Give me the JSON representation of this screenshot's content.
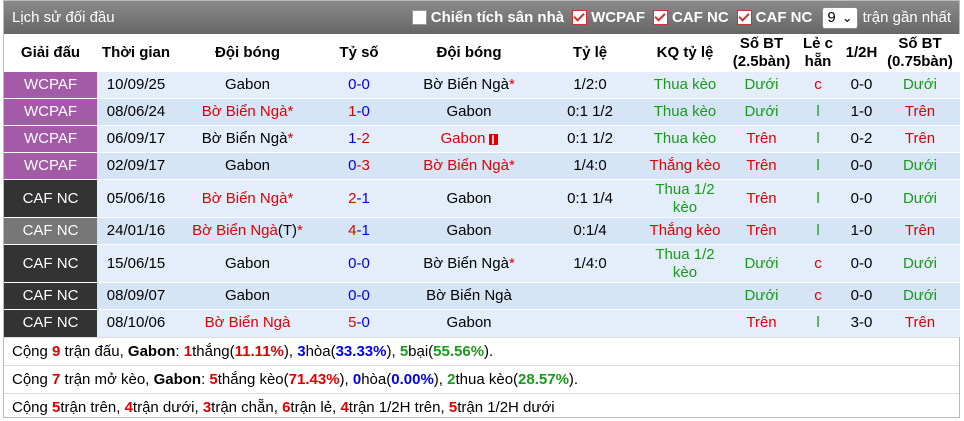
{
  "header": {
    "title": "Lịch sử đối đầu",
    "filters": [
      "Chiến tích sân nhà",
      "WCPAF",
      "CAF NC",
      "CAF NC"
    ],
    "count": "9",
    "count_label": "trận gần nhất"
  },
  "table": {
    "columns": [
      "Giải đấu",
      "Thời gian",
      "Đội bóng",
      "Tỷ số",
      "Đội bóng",
      "Tỷ lệ",
      "KQ tỷ lệ",
      "Số BT (2.5bàn)",
      "Lẻ c hẵn",
      "1/2H",
      "Số BT (0.75bàn)"
    ],
    "rows": [
      {
        "league": "WCPAF",
        "league_color": "#a35ba8",
        "date": "10/09/25",
        "home": {
          "name": "Gabon",
          "color": "#000"
        },
        "score": {
          "home": 0,
          "away": 0,
          "home_color": "#0000ee",
          "away_color": "#0000ee"
        },
        "away": {
          "name": "Bờ Biển Ngà",
          "color": "#000",
          "mark": "*"
        },
        "odds": "1/2:0",
        "result": {
          "text": "Thua kèo",
          "color": "#1a9a1a"
        },
        "ou": {
          "text": "Dưới",
          "color": "#1a9a1a"
        },
        "oe": {
          "text": "c",
          "color": "#e00000"
        },
        "half": "0-0",
        "ou_half": {
          "text": "Dưới",
          "color": "#1a9a1a"
        }
      },
      {
        "league": "WCPAF",
        "league_color": "#a35ba8",
        "date": "08/06/24",
        "home": {
          "name": "Bờ Biển Ngà",
          "color": "#e00000",
          "mark": "*"
        },
        "score": {
          "home": 1,
          "away": 0,
          "home_color": "#e00000",
          "away_color": "#0000ee"
        },
        "away": {
          "name": "Gabon",
          "color": "#000"
        },
        "odds": "0:1 1/2",
        "result": {
          "text": "Thua kèo",
          "color": "#1a9a1a"
        },
        "ou": {
          "text": "Dưới",
          "color": "#1a9a1a"
        },
        "oe": {
          "text": "l",
          "color": "#1a9a1a"
        },
        "half": "1-0",
        "ou_half": {
          "text": "Trên",
          "color": "#e00000"
        }
      },
      {
        "league": "WCPAF",
        "league_color": "#a35ba8",
        "date": "06/09/17",
        "home": {
          "name": "Bờ Biển Ngà",
          "color": "#000",
          "mark": "*"
        },
        "score": {
          "home": 1,
          "away": 2,
          "home_color": "#0000ee",
          "away_color": "#e00000"
        },
        "away": {
          "name": "Gabon",
          "color": "#e00000",
          "red_card": true
        },
        "odds": "0:1 1/2",
        "result": {
          "text": "Thua kèo",
          "color": "#1a9a1a"
        },
        "ou": {
          "text": "Trên",
          "color": "#e00000"
        },
        "oe": {
          "text": "l",
          "color": "#1a9a1a"
        },
        "half": "0-2",
        "ou_half": {
          "text": "Trên",
          "color": "#e00000"
        }
      },
      {
        "league": "WCPAF",
        "league_color": "#a35ba8",
        "date": "02/09/17",
        "home": {
          "name": "Gabon",
          "color": "#000"
        },
        "score": {
          "home": 0,
          "away": 3,
          "home_color": "#0000ee",
          "away_color": "#e00000"
        },
        "away": {
          "name": "Bờ Biển Ngà",
          "color": "#e00000",
          "mark": "*"
        },
        "odds": "1/4:0",
        "result": {
          "text": "Thắng kèo",
          "color": "#e00000"
        },
        "ou": {
          "text": "Trên",
          "color": "#e00000"
        },
        "oe": {
          "text": "l",
          "color": "#1a9a1a"
        },
        "half": "0-0",
        "ou_half": {
          "text": "Dưới",
          "color": "#1a9a1a"
        }
      },
      {
        "league": "CAF NC",
        "league_color": "#333333",
        "date": "05/06/16",
        "home": {
          "name": "Bờ Biển Ngà",
          "color": "#e00000",
          "mark": "*"
        },
        "score": {
          "home": 2,
          "away": 1,
          "home_color": "#e00000",
          "away_color": "#0000ee"
        },
        "away": {
          "name": "Gabon",
          "color": "#000"
        },
        "odds": "0:1 1/4",
        "result": {
          "text": "Thua 1/2 kèo",
          "color": "#1a9a1a"
        },
        "ou": {
          "text": "Trên",
          "color": "#e00000"
        },
        "oe": {
          "text": "l",
          "color": "#1a9a1a"
        },
        "half": "0-0",
        "ou_half": {
          "text": "Dưới",
          "color": "#1a9a1a"
        }
      },
      {
        "league": "CAF NC",
        "league_color": "#777777",
        "date": "24/01/16",
        "home": {
          "name": "Bờ Biển Ngà",
          "color": "#e00000",
          "suffix": "(T)",
          "mark": "*"
        },
        "score": {
          "home": 4,
          "away": 1,
          "home_color": "#e00000",
          "away_color": "#0000ee"
        },
        "away": {
          "name": "Gabon",
          "color": "#000"
        },
        "odds": "0:1/4",
        "result": {
          "text": "Thắng kèo",
          "color": "#e00000"
        },
        "ou": {
          "text": "Trên",
          "color": "#e00000"
        },
        "oe": {
          "text": "l",
          "color": "#1a9a1a"
        },
        "half": "1-0",
        "ou_half": {
          "text": "Trên",
          "color": "#e00000"
        }
      },
      {
        "league": "CAF NC",
        "league_color": "#333333",
        "date": "15/06/15",
        "home": {
          "name": "Gabon",
          "color": "#000"
        },
        "score": {
          "home": 0,
          "away": 0,
          "home_color": "#0000ee",
          "away_color": "#0000ee"
        },
        "away": {
          "name": "Bờ Biển Ngà",
          "color": "#000",
          "mark": "*"
        },
        "odds": "1/4:0",
        "result": {
          "text": "Thua 1/2 kèo",
          "color": "#1a9a1a"
        },
        "ou": {
          "text": "Dưới",
          "color": "#1a9a1a"
        },
        "oe": {
          "text": "c",
          "color": "#e00000"
        },
        "half": "0-0",
        "ou_half": {
          "text": "Dưới",
          "color": "#1a9a1a"
        }
      },
      {
        "league": "CAF NC",
        "league_color": "#333333",
        "date": "08/09/07",
        "home": {
          "name": "Gabon",
          "color": "#000"
        },
        "score": {
          "home": 0,
          "away": 0,
          "home_color": "#0000ee",
          "away_color": "#0000ee"
        },
        "away": {
          "name": "Bờ Biển Ngà",
          "color": "#000"
        },
        "odds": null,
        "result": null,
        "ou": {
          "text": "Dưới",
          "color": "#1a9a1a"
        },
        "oe": {
          "text": "c",
          "color": "#e00000"
        },
        "half": "0-0",
        "ou_half": {
          "text": "Dưới",
          "color": "#1a9a1a"
        }
      },
      {
        "league": "CAF NC",
        "league_color": "#333333",
        "date": "08/10/06",
        "home": {
          "name": "Bờ Biển Ngà",
          "color": "#e00000"
        },
        "score": {
          "home": 5,
          "away": 0,
          "home_color": "#e00000",
          "away_color": "#0000ee"
        },
        "away": {
          "name": "Gabon",
          "color": "#000"
        },
        "odds": null,
        "result": null,
        "ou": {
          "text": "Trên",
          "color": "#e00000"
        },
        "oe": {
          "text": "l",
          "color": "#1a9a1a"
        },
        "half": "3-0",
        "ou_half": {
          "text": "Trên",
          "color": "#e00000"
        }
      }
    ]
  },
  "summary": [
    [
      {
        "text": "Cộng "
      },
      {
        "text": "9",
        "color": "#e00000",
        "bold": true
      },
      {
        "text": " trận đấu, "
      },
      {
        "text": "Gabon",
        "bold": true
      },
      {
        "text": ": "
      },
      {
        "text": "1",
        "color": "#e00000",
        "bold": true
      },
      {
        "text": "thắng("
      },
      {
        "text": "11.11%",
        "color": "#e00000",
        "bold": true
      },
      {
        "text": "), "
      },
      {
        "text": "3",
        "color": "#0000ee",
        "bold": true
      },
      {
        "text": "hòa("
      },
      {
        "text": "33.33%",
        "color": "#0000ee",
        "bold": true
      },
      {
        "text": "), "
      },
      {
        "text": "5",
        "color": "#1a9a1a",
        "bold": true
      },
      {
        "text": "bại("
      },
      {
        "text": "55.56%",
        "color": "#1a9a1a",
        "bold": true
      },
      {
        "text": ")."
      }
    ],
    [
      {
        "text": "Cộng "
      },
      {
        "text": "7",
        "color": "#e00000",
        "bold": true
      },
      {
        "text": " trận mở kèo, "
      },
      {
        "text": "Gabon",
        "bold": true
      },
      {
        "text": ": "
      },
      {
        "text": "5",
        "color": "#e00000",
        "bold": true
      },
      {
        "text": "thắng kèo("
      },
      {
        "text": "71.43%",
        "color": "#e00000",
        "bold": true
      },
      {
        "text": "), "
      },
      {
        "text": "0",
        "color": "#0000ee",
        "bold": true
      },
      {
        "text": "hòa("
      },
      {
        "text": "0.00%",
        "color": "#0000ee",
        "bold": true
      },
      {
        "text": "), "
      },
      {
        "text": "2",
        "color": "#1a9a1a",
        "bold": true
      },
      {
        "text": "thua kèo("
      },
      {
        "text": "28.57%",
        "color": "#1a9a1a",
        "bold": true
      },
      {
        "text": ")."
      }
    ],
    [
      {
        "text": "Cộng "
      },
      {
        "text": "5",
        "color": "#e00000",
        "bold": true
      },
      {
        "text": "trận trên, "
      },
      {
        "text": "4",
        "color": "#e00000",
        "bold": true
      },
      {
        "text": "trận dưới, "
      },
      {
        "text": "3",
        "color": "#e00000",
        "bold": true
      },
      {
        "text": "trận chẵn, "
      },
      {
        "text": "6",
        "color": "#e00000",
        "bold": true
      },
      {
        "text": "trận lẻ, "
      },
      {
        "text": "4",
        "color": "#e00000",
        "bold": true
      },
      {
        "text": "trận 1/2H trên, "
      },
      {
        "text": "5",
        "color": "#e00000",
        "bold": true
      },
      {
        "text": "trận 1/2H dưới"
      }
    ]
  ]
}
